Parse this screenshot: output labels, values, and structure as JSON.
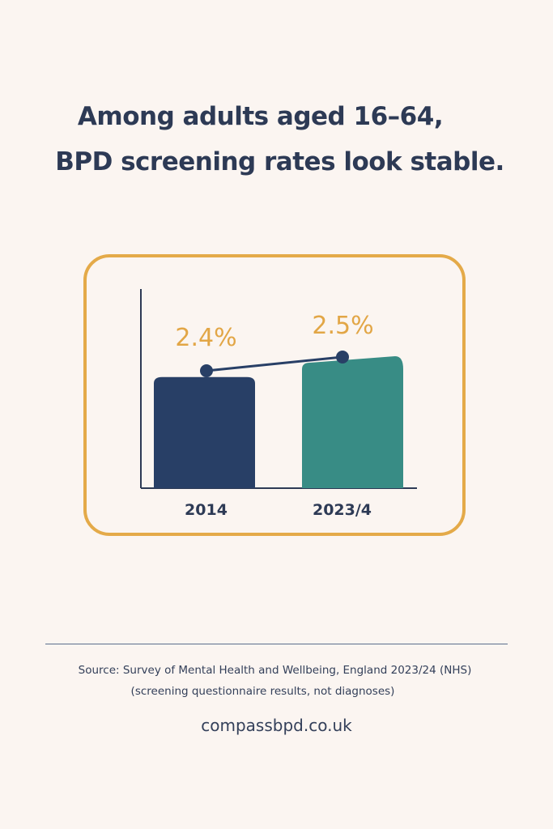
{
  "title_line1": "Among adults aged 16–64,",
  "title_line2": "BPD screening rates look stable.",
  "chart_data": {
    "type": "bar",
    "categories": [
      "2014",
      "2023/4"
    ],
    "values": [
      2.4,
      2.5
    ],
    "data_labels": [
      "2.4%",
      "2.5%"
    ],
    "ylim": [
      0,
      4.3
    ],
    "grid": false,
    "overlay_line": true,
    "colors": {
      "bars": [
        "#283f66",
        "#388c85"
      ],
      "labels": "#e2a646",
      "line": "#283f66",
      "frame": "#e4aa49"
    }
  },
  "source_line1": "Source: Survey of Mental Health and Wellbeing, England 2023/24 (NHS)",
  "source_line2": "(screening questionnaire results, not diagnoses)",
  "website": "compassbpd.co.uk"
}
